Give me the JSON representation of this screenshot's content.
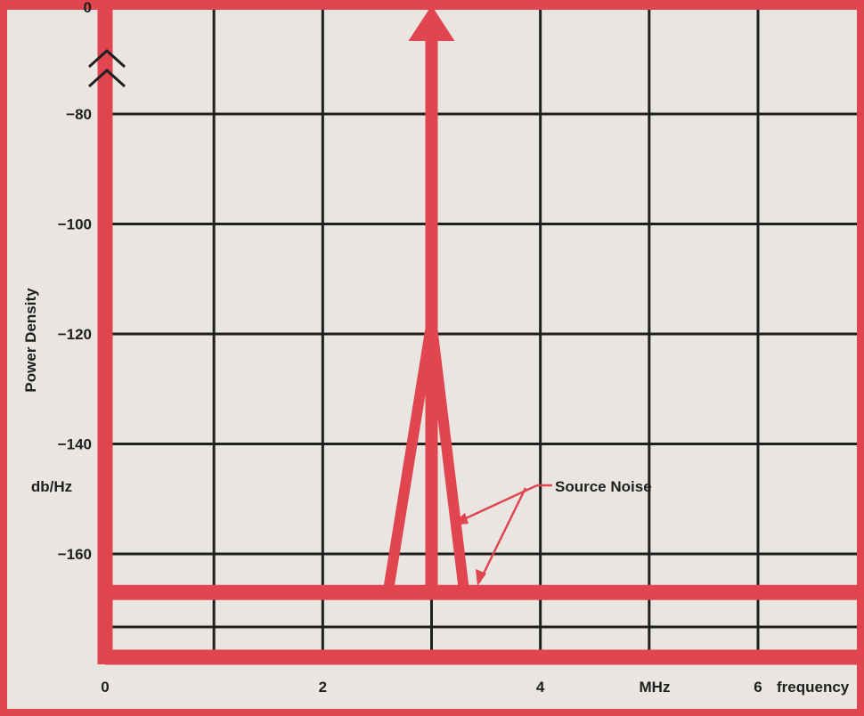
{
  "chart_data": {
    "type": "line",
    "title": "",
    "ylabel": "Power Density",
    "yunit": "db/Hz",
    "xlabel": "frequency",
    "xunit": "MHz",
    "xlim": [
      0,
      7
    ],
    "ylim": [
      -180,
      0
    ],
    "axis_break": "between 0 and -80",
    "grid": true,
    "x_ticks": [
      {
        "value": 0,
        "label": "0"
      },
      {
        "value": 2,
        "label": "2"
      },
      {
        "value": 4,
        "label": "4"
      },
      {
        "value": 6,
        "label": "6"
      }
    ],
    "y_ticks": [
      {
        "value": 0,
        "label": "0"
      },
      {
        "value": -80,
        "label": "−80"
      },
      {
        "value": -100,
        "label": "−100"
      },
      {
        "value": -120,
        "label": "−120"
      },
      {
        "value": -140,
        "label": "−140"
      },
      {
        "value": -160,
        "label": "−160"
      }
    ],
    "series": [
      {
        "name": "",
        "color": "#e04550",
        "points": [
          {
            "x": 0,
            "y": -167
          },
          {
            "x": 2.6,
            "y": -167
          },
          {
            "x": 3,
            "y": -118
          },
          {
            "x": 3.3,
            "y": -167
          },
          {
            "x": 7,
            "y": -167
          }
        ],
        "spike": {
          "x": 3,
          "y_top": 0
        }
      }
    ],
    "annotations": [
      {
        "text": "Source Noise",
        "x": 4.2,
        "y": -148
      }
    ]
  }
}
